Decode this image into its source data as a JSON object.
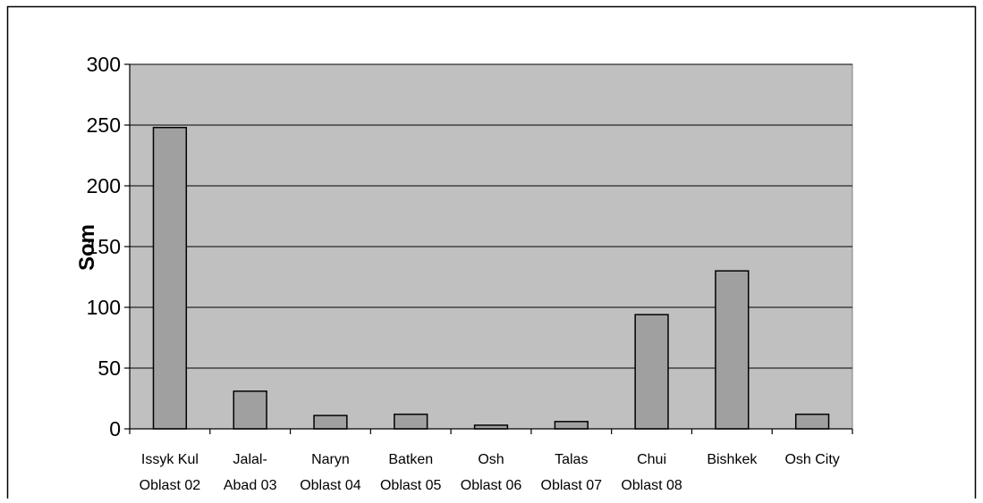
{
  "chart_data": {
    "type": "bar",
    "title": "",
    "xlabel": "",
    "ylabel": "Som",
    "ylim": [
      0,
      300
    ],
    "yticks": [
      0,
      50,
      100,
      150,
      200,
      250,
      300
    ],
    "grid": true,
    "legend": "none",
    "categories": [
      [
        "Issyk Kul",
        "Oblast 02"
      ],
      [
        "Jalal-",
        "Abad 03"
      ],
      [
        "Naryn",
        "Oblast 04"
      ],
      [
        "Batken",
        "Oblast 05"
      ],
      [
        "Osh",
        "Oblast 06"
      ],
      [
        "Talas",
        "Oblast 07"
      ],
      [
        "Chui",
        "Oblast 08"
      ],
      [
        "Bishkek"
      ],
      [
        "Osh City"
      ]
    ],
    "series": [
      {
        "values": [
          248,
          31,
          11,
          12,
          3,
          6,
          94,
          130,
          12
        ]
      }
    ],
    "colors": {
      "plot_background": "#c0c0c0",
      "bar_fill": "#a0a0a0",
      "bar_stroke": "#000000",
      "gridline": "#000000",
      "page_background": "#ffffff",
      "frame": "#000000"
    }
  }
}
